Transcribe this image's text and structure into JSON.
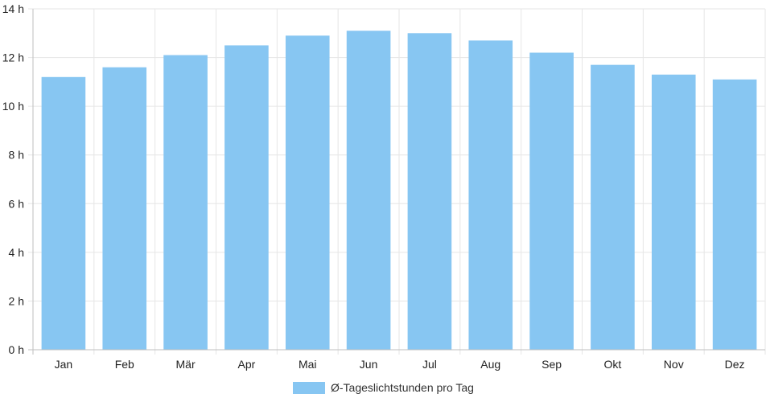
{
  "chart_data": {
    "type": "bar",
    "categories": [
      "Jan",
      "Feb",
      "Mär",
      "Apr",
      "Mai",
      "Jun",
      "Jul",
      "Aug",
      "Sep",
      "Okt",
      "Nov",
      "Dez"
    ],
    "series": [
      {
        "name": "Ø-Tageslichtstunden pro Tag",
        "values": [
          11.2,
          11.6,
          12.1,
          12.5,
          12.9,
          13.1,
          13.0,
          12.7,
          12.2,
          11.7,
          11.3,
          11.1
        ],
        "color": "#87c6f2"
      }
    ],
    "ylim": [
      0,
      14
    ],
    "yticks": [
      0,
      2,
      4,
      6,
      8,
      10,
      12,
      14
    ],
    "ytick_labels": [
      "0 h",
      "2 h",
      "4 h",
      "6 h",
      "8 h",
      "10 h",
      "12 h",
      "14 h"
    ],
    "grid": true,
    "legend_position": "bottom-center"
  }
}
